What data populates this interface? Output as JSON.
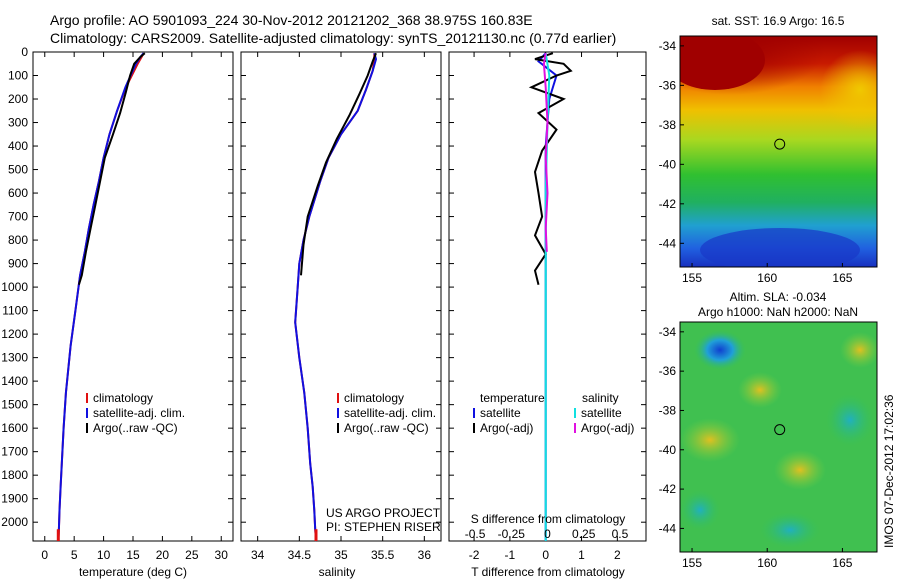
{
  "header": {
    "line1": "Argo profile: AO 5901093_224 30-Nov-2012 20121202_368 38.975S 160.83E",
    "line2": "Climatology: CARS2009. Satellite-adjusted climatology: synTS_20121130.nc (0.77d earlier)"
  },
  "colors": {
    "climatology": "#e01010",
    "satellite": "#1010e0",
    "argo": "#000000",
    "salinity_satellite": "#10e0e0",
    "salinity_argo": "#e010e0"
  },
  "chart_data": [
    {
      "type": "line",
      "id": "temperature",
      "xlabel": "temperature (deg C)",
      "ylabel": "",
      "xlim": [
        -2,
        32
      ],
      "ylim": [
        2080,
        0
      ],
      "xticks": [
        "0",
        "5",
        "10",
        "15",
        "20",
        "25",
        "30"
      ],
      "xtick_values": [
        0,
        5,
        10,
        15,
        20,
        25,
        30
      ],
      "yticks": [
        "0",
        "100",
        "200",
        "300",
        "400",
        "500",
        "600",
        "700",
        "800",
        "900",
        "1000",
        "1100",
        "1200",
        "1300",
        "1400",
        "1500",
        "1600",
        "1700",
        "1800",
        "1900",
        "2000"
      ],
      "ytick_values": [
        0,
        100,
        200,
        300,
        400,
        500,
        600,
        700,
        800,
        900,
        1000,
        1100,
        1200,
        1300,
        1400,
        1500,
        1600,
        1700,
        1800,
        1900,
        2000
      ],
      "legend": [
        "climatology",
        "satellite-adj. clim.",
        "Argo(..raw -QC)"
      ],
      "series": [
        {
          "name": "climatology",
          "x": [
            16.8,
            16.5,
            15.8,
            14.8,
            13.8,
            12.3,
            11.0,
            10.0,
            9.2,
            8.3,
            7.5,
            6.8,
            6.0,
            5.2,
            4.4,
            3.6,
            3.2,
            2.9,
            2.7,
            2.5,
            2.4,
            2.3
          ],
          "y": [
            5,
            20,
            50,
            100,
            150,
            250,
            350,
            450,
            550,
            650,
            750,
            850,
            950,
            1100,
            1250,
            1450,
            1600,
            1750,
            1850,
            1950,
            2030,
            2080
          ]
        },
        {
          "name": "satellite-adj. clim.",
          "x": [
            16.8,
            16.3,
            15.5,
            14.6,
            13.7,
            12.3,
            11.0,
            10.0,
            9.2,
            8.3,
            7.5,
            6.8,
            6.0,
            5.2,
            4.4,
            3.6,
            3.2,
            2.9,
            2.7,
            2.5,
            2.4,
            2.3
          ],
          "y": [
            5,
            20,
            50,
            100,
            150,
            250,
            350,
            450,
            550,
            650,
            750,
            850,
            950,
            1100,
            1250,
            1450,
            1600,
            1750,
            1850,
            1950,
            2030,
            2080
          ]
        },
        {
          "name": "Argo(..raw -QC)",
          "x": [
            17.0,
            16.3,
            15.2,
            14.5,
            13.8,
            12.8,
            11.6,
            10.2,
            9.4,
            8.6,
            7.8,
            7.0,
            6.3,
            5.8
          ],
          "y": [
            5,
            20,
            50,
            100,
            170,
            260,
            350,
            450,
            550,
            650,
            750,
            850,
            950,
            990
          ]
        }
      ]
    },
    {
      "type": "line",
      "id": "salinity",
      "xlabel": "salinity",
      "ylabel": "",
      "xlim": [
        33.8,
        36.2
      ],
      "ylim": [
        2080,
        0
      ],
      "xticks": [
        "34",
        "34.5",
        "35",
        "35.5",
        "36"
      ],
      "xtick_values": [
        34,
        34.5,
        35,
        35.5,
        36
      ],
      "legend": [
        "climatology",
        "satellite-adj. clim.",
        "Argo(..raw -QC)"
      ],
      "annotations": [
        "US ARGO PROJECT",
        "PI: STEPHEN RISER"
      ],
      "series": [
        {
          "name": "climatology",
          "x": [
            35.4,
            35.4,
            35.38,
            35.3,
            35.2,
            35.0,
            34.85,
            34.75,
            34.62,
            34.55,
            34.5,
            34.48,
            34.45,
            34.5,
            34.56,
            34.6,
            34.63,
            34.66,
            34.68,
            34.69,
            34.7
          ],
          "y": [
            5,
            30,
            80,
            160,
            250,
            350,
            450,
            550,
            700,
            800,
            900,
            1000,
            1150,
            1300,
            1450,
            1600,
            1750,
            1850,
            1950,
            2030,
            2080
          ]
        },
        {
          "name": "satellite-adj. clim.",
          "x": [
            35.4,
            35.42,
            35.38,
            35.3,
            35.2,
            35.0,
            34.85,
            34.75,
            34.62,
            34.55,
            34.5,
            34.48,
            34.45,
            34.5,
            34.56,
            34.6,
            34.63,
            34.66,
            34.68,
            34.69,
            34.7
          ],
          "y": [
            5,
            30,
            80,
            160,
            250,
            350,
            450,
            550,
            700,
            800,
            900,
            1000,
            1150,
            1300,
            1450,
            1600,
            1750,
            1850,
            1950,
            2030,
            2080
          ]
        },
        {
          "name": "Argo(..raw -QC)",
          "x": [
            35.42,
            35.38,
            35.32,
            35.22,
            35.1,
            34.95,
            34.82,
            34.72,
            34.6,
            34.55,
            34.52
          ],
          "y": [
            5,
            40,
            100,
            180,
            270,
            370,
            470,
            570,
            700,
            820,
            950
          ]
        }
      ]
    },
    {
      "type": "line",
      "id": "difference",
      "xlabel": "T difference from climatology",
      "xlabel_top": "S difference from climatology",
      "xlim": [
        -2.7,
        2.8
      ],
      "ylim": [
        2080,
        0
      ],
      "xticks": [
        "-2",
        "-1",
        "0",
        "1",
        "2"
      ],
      "xtick_values": [
        -2,
        -1,
        0,
        1,
        2
      ],
      "xticks_top": [
        "-0.5",
        "-0.25",
        "0",
        "0.25",
        "0.5"
      ],
      "xtick_top_values": [
        -0.5,
        -0.25,
        0,
        0.25,
        0.5
      ],
      "legend_temperature_title": "temperature",
      "legend_salinity_title": "salinity",
      "legend": [
        "satellite",
        "Argo(-adj)",
        "satellite",
        "Argo(-adj)"
      ],
      "series": [
        {
          "name": "satellite",
          "x": [
            0.0,
            -0.2,
            0.3,
            0.1,
            0.0,
            0.0,
            0.0,
            0.0,
            0.0,
            0.0
          ],
          "y": [
            5,
            40,
            100,
            200,
            400,
            700,
            1000,
            1400,
            1800,
            2080
          ]
        },
        {
          "name": "Argo(-adj)",
          "x": [
            0.2,
            -0.3,
            0.5,
            0.7,
            0.3,
            -0.4,
            0.5,
            -0.2,
            0.3,
            -0.1,
            -0.3,
            -0.2,
            -0.1,
            -0.3,
            0.0,
            -0.3,
            -0.2
          ],
          "y": [
            5,
            30,
            50,
            80,
            100,
            150,
            200,
            260,
            330,
            420,
            510,
            600,
            700,
            780,
            860,
            930,
            990
          ]
        },
        {
          "name": "salinity satellite",
          "x": [
            0.0,
            0.1,
            0.05,
            0.0,
            0.0,
            0.0,
            0.0
          ],
          "y": [
            5,
            100,
            300,
            600,
            1000,
            1500,
            2080
          ]
        },
        {
          "name": "salinity Argo(-adj)",
          "x": [
            0.0,
            -0.05,
            0.0,
            0.05,
            0.0,
            0.05,
            0.0,
            0.03
          ],
          "y": [
            5,
            50,
            150,
            300,
            450,
            600,
            750,
            850
          ]
        }
      ]
    }
  ],
  "maps": {
    "sst": {
      "title": "sat. SST: 16.9 Argo: 16.5",
      "xticks": [
        "155",
        "160",
        "165"
      ],
      "yticks": [
        "-34",
        "-36",
        "-38",
        "-40",
        "-42",
        "-44"
      ],
      "xlim": [
        154.2,
        167.3
      ],
      "ylim": [
        -45.2,
        -33.5
      ],
      "marker": {
        "lon": 160.83,
        "lat": -38.975
      }
    },
    "sla": {
      "title_line1": "Altim. SLA: -0.034",
      "title_line2": "Argo h1000: NaN h2000: NaN",
      "xticks": [
        "155",
        "160",
        "165"
      ],
      "yticks": [
        "-34",
        "-36",
        "-38",
        "-40",
        "-42",
        "-44"
      ],
      "xlim": [
        154.2,
        167.3
      ],
      "ylim": [
        -45.2,
        -33.5
      ],
      "marker": {
        "lon": 160.83,
        "lat": -38.975
      }
    }
  },
  "footer_stamp": "IMOS 07-Dec-2012 17:02:36"
}
